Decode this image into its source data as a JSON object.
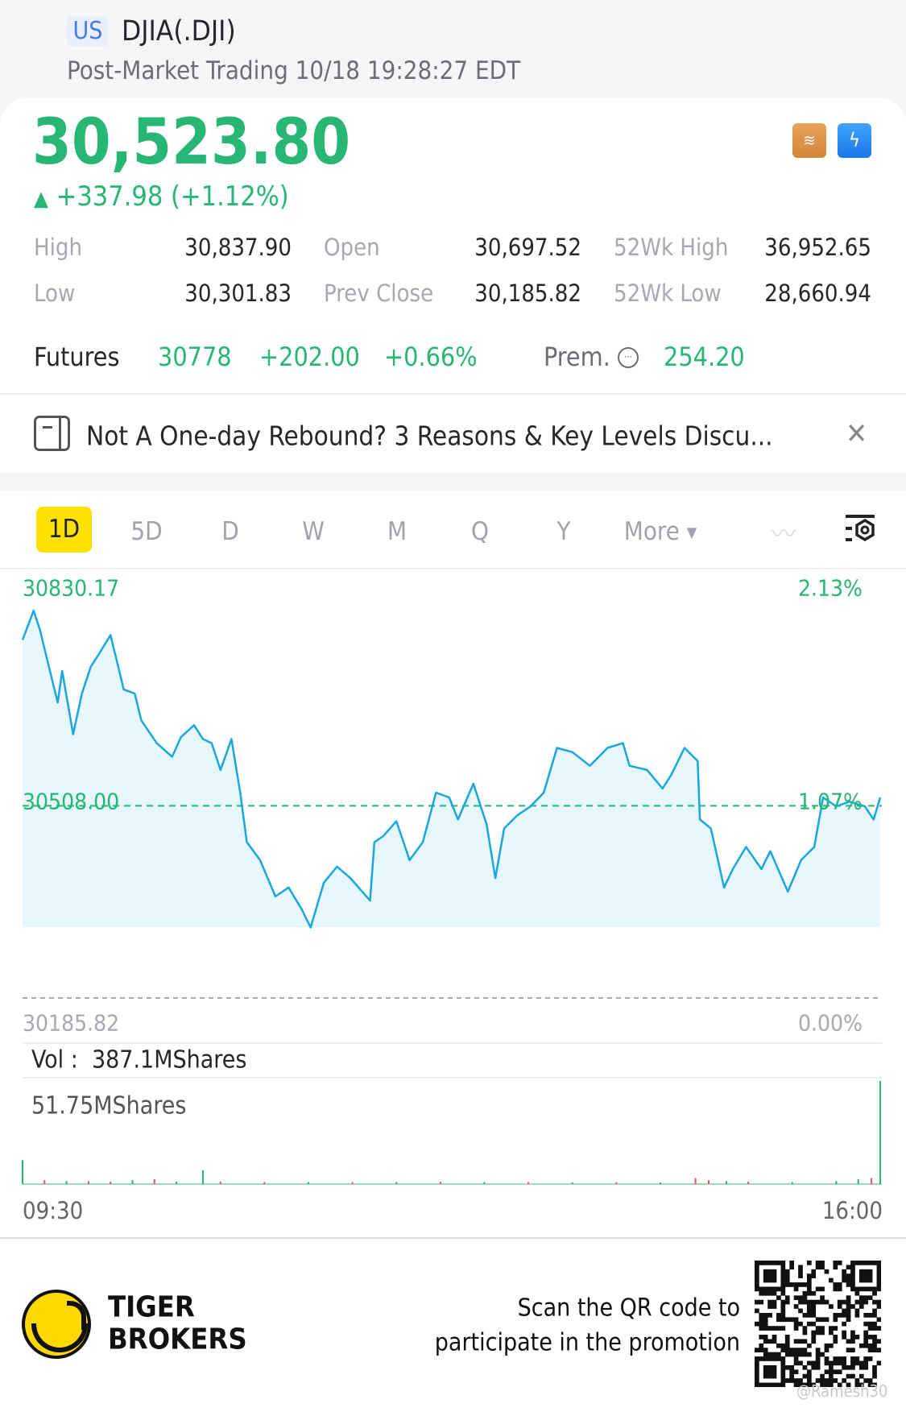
{
  "header": {
    "market_badge": "US",
    "title": "DJIA(.DJI)",
    "subtitle": "Post-Market Trading 10/18 19:28:27 EDT"
  },
  "quote": {
    "price": "30,523.80",
    "change": "+337.98 (+1.12%)",
    "direction_icon": "triangle-up-icon",
    "badge_icons": [
      "layers-a-icon",
      "lightning-1-icon"
    ]
  },
  "stats": [
    {
      "label": "High",
      "value": "30,837.90"
    },
    {
      "label": "Open",
      "value": "30,697.52"
    },
    {
      "label": "52Wk High",
      "value": "36,952.65"
    },
    {
      "label": "Low",
      "value": "30,301.83"
    },
    {
      "label": "Prev Close",
      "value": "30,185.82"
    },
    {
      "label": "52Wk Low",
      "value": "28,660.94"
    }
  ],
  "futures": {
    "label": "Futures",
    "price": "30778",
    "change": "+202.00",
    "change_pct": "+0.66%",
    "prem_label": "Prem.",
    "prem_value": "254.20"
  },
  "news": {
    "text": "Not A One-day Rebound? 3 Reasons & Key Levels Discu..."
  },
  "tabs": [
    {
      "label": "1D",
      "active": true
    },
    {
      "label": "5D"
    },
    {
      "label": "D"
    },
    {
      "label": "W"
    },
    {
      "label": "M"
    },
    {
      "label": "Q"
    },
    {
      "label": "Y"
    },
    {
      "label": "More"
    }
  ],
  "colors": {
    "up": "#27b674",
    "line": "#1aa6df",
    "fill": "#e6f7fd",
    "active_tab": "#ffe100",
    "down": "#f0506e"
  },
  "chart_data": {
    "type": "line",
    "y_top_label": "30830.17",
    "y_top_pct": "2.13%",
    "y_mid_label": "30508.00",
    "y_mid_pct": "1.07%",
    "y_base_label": "30185.82",
    "y_base_pct": "0.00%",
    "ylim": [
      30185.82,
      30830.17
    ],
    "reference_line": 30508.0,
    "x_start": "09:30",
    "x_end": "16:00",
    "points": [
      [
        "09:30",
        30786
      ],
      [
        "09:35",
        30835
      ],
      [
        "09:38",
        30802
      ],
      [
        "09:40",
        30771
      ],
      [
        "09:44",
        30711
      ],
      [
        "09:46",
        30681
      ],
      [
        "09:48",
        30734
      ],
      [
        "09:53",
        30628
      ],
      [
        "09:57",
        30696
      ],
      [
        "10:01",
        30741
      ],
      [
        "10:05",
        30764
      ],
      [
        "10:10",
        30794
      ],
      [
        "10:13",
        30749
      ],
      [
        "10:16",
        30703
      ],
      [
        "10:21",
        30696
      ],
      [
        "10:24",
        30651
      ],
      [
        "10:31",
        30613
      ],
      [
        "10:38",
        30590
      ],
      [
        "10:42",
        30623
      ],
      [
        "10:48",
        30643
      ],
      [
        "10:52",
        30620
      ],
      [
        "10:56",
        30613
      ],
      [
        "11:00",
        30568
      ],
      [
        "11:05",
        30620
      ],
      [
        "11:09",
        30530
      ],
      [
        "11:12",
        30447
      ],
      [
        "11:18",
        30417
      ],
      [
        "11:25",
        30356
      ],
      [
        "11:31",
        30371
      ],
      [
        "11:37",
        30334
      ],
      [
        "11:41",
        30304
      ],
      [
        "11:47",
        30379
      ],
      [
        "11:53",
        30406
      ],
      [
        "11:59",
        30387
      ],
      [
        "12:08",
        30349
      ],
      [
        "12:10",
        30447
      ],
      [
        "12:14",
        30457
      ],
      [
        "12:20",
        30482
      ],
      [
        "12:26",
        30417
      ],
      [
        "12:32",
        30447
      ],
      [
        "12:38",
        30530
      ],
      [
        "12:44",
        30522
      ],
      [
        "12:48",
        30485
      ],
      [
        "12:55",
        30545
      ],
      [
        "13:01",
        30477
      ],
      [
        "13:05",
        30387
      ],
      [
        "13:09",
        30470
      ],
      [
        "13:15",
        30492
      ],
      [
        "13:21",
        30507
      ],
      [
        "13:27",
        30530
      ],
      [
        "13:33",
        30605
      ],
      [
        "13:40",
        30598
      ],
      [
        "13:48",
        30575
      ],
      [
        "13:56",
        30605
      ],
      [
        "14:03",
        30613
      ],
      [
        "14:06",
        30575
      ],
      [
        "14:14",
        30568
      ],
      [
        "14:21",
        30537
      ],
      [
        "14:25",
        30560
      ],
      [
        "14:31",
        30605
      ],
      [
        "14:37",
        30583
      ],
      [
        "14:38",
        30485
      ],
      [
        "14:43",
        30470
      ],
      [
        "14:49",
        30371
      ],
      [
        "14:53",
        30402
      ],
      [
        "14:59",
        30439
      ],
      [
        "15:06",
        30402
      ],
      [
        "15:10",
        30432
      ],
      [
        "15:18",
        30364
      ],
      [
        "15:24",
        30417
      ],
      [
        "15:30",
        30439
      ],
      [
        "15:34",
        30522
      ],
      [
        "15:40",
        30507
      ],
      [
        "15:46",
        30515
      ],
      [
        "15:53",
        30507
      ],
      [
        "15:57",
        30485
      ],
      [
        "16:00",
        30522
      ]
    ]
  },
  "volume": {
    "label": "Vol :",
    "total": "387.1MShares",
    "max_label": "51.75MShares",
    "max": 51.75,
    "bars": [
      [
        "09:30",
        12,
        "up"
      ],
      [
        "09:40",
        2,
        "down"
      ],
      [
        "09:50",
        1.5,
        "up"
      ],
      [
        "10:00",
        1.5,
        "down"
      ],
      [
        "10:10",
        1.2,
        "down"
      ],
      [
        "10:20",
        2,
        "up"
      ],
      [
        "10:30",
        2.5,
        "down"
      ],
      [
        "10:40",
        1.2,
        "up"
      ],
      [
        "10:52",
        7,
        "up"
      ],
      [
        "11:00",
        1.2,
        "down"
      ],
      [
        "11:20",
        1,
        "down"
      ],
      [
        "11:40",
        1,
        "up"
      ],
      [
        "12:00",
        1,
        "down"
      ],
      [
        "12:20",
        1,
        "up"
      ],
      [
        "12:40",
        1.2,
        "down"
      ],
      [
        "13:00",
        1,
        "up"
      ],
      [
        "13:20",
        1,
        "down"
      ],
      [
        "13:40",
        0.8,
        "up"
      ],
      [
        "14:00",
        1,
        "down"
      ],
      [
        "14:20",
        0.8,
        "up"
      ],
      [
        "14:36",
        3,
        "down"
      ],
      [
        "14:42",
        2,
        "down"
      ],
      [
        "14:50",
        1.5,
        "up"
      ],
      [
        "15:00",
        1.2,
        "down"
      ],
      [
        "15:20",
        1,
        "up"
      ],
      [
        "15:40",
        1.5,
        "up"
      ],
      [
        "15:50",
        2.5,
        "up"
      ],
      [
        "15:56",
        3,
        "down"
      ],
      [
        "16:00",
        51.75,
        "up"
      ]
    ]
  },
  "footer": {
    "brand_line1": "TIGER",
    "brand_line2": "BROKERS",
    "promo_line1": "Scan the QR code to",
    "promo_line2": "participate in the promotion",
    "watermark": "@Ramesh30"
  }
}
